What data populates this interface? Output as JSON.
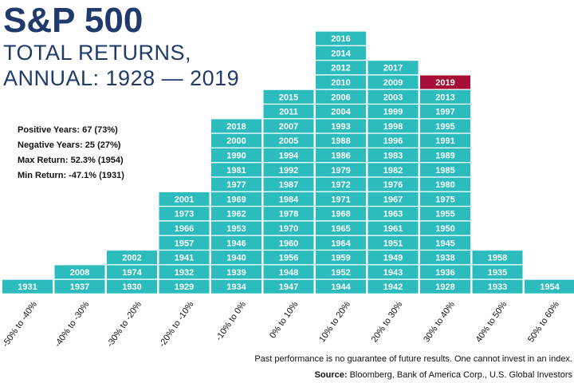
{
  "header": {
    "title": "S&P 500",
    "subtitle_line1": "TOTAL RETURNS,",
    "subtitle_line2": "ANNUAL: 1928 — 2019"
  },
  "stats": [
    "Positive Years: 67 (73%)",
    "Negative Years: 25 (27%)",
    "Max Return: 52.3% (1954)",
    "Min Return: -47.1% (1931)"
  ],
  "footer": {
    "disclaimer": "Past performance is no guarantee of future results. One cannot invest in an index.",
    "source_label": "Source:",
    "source_text": " Bloomberg, Bank of America Corp., U.S. Global Investors"
  },
  "colors": {
    "box": "#2cbcbd",
    "highlight": "#a50f35",
    "title": "#1f3a6b"
  },
  "chart_data": {
    "type": "histogram",
    "highlight_year": "2019",
    "categories": [
      "-50% to -40%",
      "-40% to -30%",
      "-30% to -20%",
      "-20% to -10%",
      "-10% to 0%",
      "0% to 10%",
      "10% to 20%",
      "20% to 30%",
      "30% to 40%",
      "40% to 50%",
      "50% to 60%"
    ],
    "bins": [
      [
        "1931"
      ],
      [
        "1937",
        "2008"
      ],
      [
        "1930",
        "1974",
        "2002"
      ],
      [
        "1929",
        "1932",
        "1941",
        "1957",
        "1966",
        "1973",
        "2001"
      ],
      [
        "1934",
        "1939",
        "1940",
        "1946",
        "1953",
        "1962",
        "1969",
        "1977",
        "1981",
        "1990",
        "2000",
        "2018"
      ],
      [
        "1947",
        "1948",
        "1956",
        "1960",
        "1970",
        "1978",
        "1984",
        "1987",
        "1992",
        "1994",
        "2005",
        "2007",
        "2011",
        "2015"
      ],
      [
        "1944",
        "1952",
        "1959",
        "1964",
        "1965",
        "1968",
        "1971",
        "1972",
        "1979",
        "1986",
        "1988",
        "1993",
        "2004",
        "2006",
        "2010",
        "2012",
        "2014",
        "2016"
      ],
      [
        "1942",
        "1943",
        "1949",
        "1951",
        "1961",
        "1963",
        "1967",
        "1976",
        "1982",
        "1983",
        "1996",
        "1998",
        "1999",
        "2003",
        "2009",
        "2017"
      ],
      [
        "1928",
        "1936",
        "1938",
        "1945",
        "1950",
        "1955",
        "1975",
        "1980",
        "1985",
        "1989",
        "1991",
        "1995",
        "1997",
        "2013",
        "2019"
      ],
      [
        "1933",
        "1935",
        "1958"
      ],
      [
        "1954"
      ]
    ]
  }
}
